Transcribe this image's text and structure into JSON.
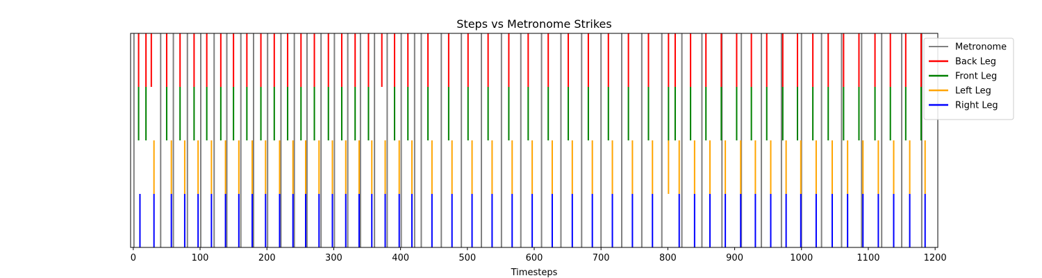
{
  "chart_data": {
    "type": "event-raster",
    "title": "Steps vs Metronome Strikes",
    "xlabel": "Timesteps",
    "ylabel": "",
    "xlim": [
      -4,
      1204
    ],
    "ylim": [
      0,
      4
    ],
    "xticks": [
      0,
      100,
      200,
      300,
      400,
      500,
      600,
      700,
      800,
      900,
      1000,
      1100,
      1200
    ],
    "xtick_labels": [
      "0",
      "100",
      "200",
      "300",
      "400",
      "500",
      "600",
      "700",
      "800",
      "900",
      "1000",
      "1100",
      "1200"
    ],
    "grid": false,
    "legend_position": "upper-right-outside",
    "series": [
      {
        "name": "Metronome",
        "color": "#808080",
        "y_range": [
          0,
          4
        ],
        "x": [
          1,
          41,
          60,
          81,
          101,
          121,
          140,
          161,
          180,
          201,
          221,
          241,
          260,
          281,
          301,
          321,
          340,
          361,
          380,
          401,
          421,
          431,
          461,
          491,
          521,
          551,
          580,
          611,
          640,
          671,
          700,
          731,
          761,
          791,
          821,
          851,
          881,
          910,
          940,
          970,
          1000,
          1030,
          1060,
          1090,
          1120,
          1150,
          1180
        ]
      },
      {
        "name": "Back Leg",
        "color": "#ff0000",
        "y_range": [
          3,
          4
        ],
        "x": [
          8,
          19,
          27,
          50,
          70,
          91,
          110,
          131,
          150,
          170,
          191,
          211,
          231,
          251,
          271,
          292,
          312,
          332,
          352,
          372,
          391,
          411,
          441,
          472,
          501,
          531,
          562,
          591,
          621,
          651,
          681,
          711,
          741,
          771,
          801,
          811,
          834,
          857,
          880,
          903,
          925,
          948,
          972,
          994,
          1017,
          1040,
          1063,
          1086,
          1110,
          1133,
          1156,
          1179
        ]
      },
      {
        "name": "Front Leg",
        "color": "#008000",
        "y_range": [
          2,
          3
        ],
        "x": [
          8,
          19,
          50,
          70,
          91,
          110,
          131,
          150,
          170,
          191,
          211,
          231,
          251,
          271,
          292,
          312,
          332,
          352,
          391,
          411,
          441,
          472,
          501,
          531,
          562,
          591,
          621,
          651,
          681,
          711,
          741,
          771,
          801,
          811,
          834,
          857,
          880,
          903,
          925,
          948,
          972,
          994,
          1017,
          1040,
          1063,
          1086,
          1110,
          1133,
          1156,
          1179
        ]
      },
      {
        "name": "Left Leg",
        "color": "#ffa500",
        "y_range": [
          1,
          2
        ],
        "x": [
          31,
          57,
          77,
          97,
          117,
          138,
          158,
          178,
          198,
          219,
          239,
          258,
          278,
          298,
          318,
          338,
          357,
          377,
          398,
          417,
          447,
          477,
          507,
          537,
          567,
          597,
          627,
          657,
          687,
          717,
          747,
          777,
          801,
          817,
          840,
          863,
          886,
          909,
          931,
          954,
          977,
          999,
          1022,
          1046,
          1069,
          1092,
          1115,
          1138,
          1162,
          1185
        ]
      },
      {
        "name": "Right Leg",
        "color": "#0000ff",
        "y_range": [
          0,
          1
        ],
        "x": [
          10,
          31,
          57,
          77,
          97,
          117,
          138,
          158,
          178,
          198,
          219,
          239,
          258,
          278,
          298,
          318,
          338,
          357,
          377,
          398,
          417,
          447,
          477,
          507,
          537,
          567,
          597,
          627,
          657,
          687,
          717,
          747,
          777,
          817,
          840,
          863,
          886,
          909,
          931,
          954,
          977,
          999,
          1022,
          1046,
          1069,
          1092,
          1115,
          1138,
          1162,
          1185
        ]
      }
    ]
  }
}
